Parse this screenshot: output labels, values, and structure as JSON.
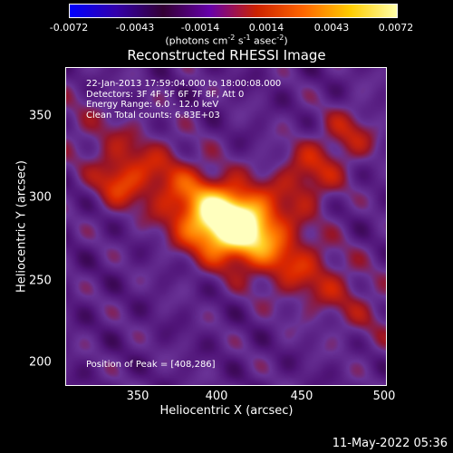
{
  "colorbar": {
    "ticks": [
      "-0.0072",
      "-0.0043",
      "-0.0014",
      "0.0014",
      "0.0043",
      "0.0072"
    ],
    "unit_parts": {
      "a": "(photons cm",
      "b": "-2",
      "c": " s",
      "d": "-1",
      "e": " asec",
      "f": "-2",
      "g": ")"
    },
    "colors": [
      "#0000ff",
      "#3300aa",
      "#330033",
      "#6600aa",
      "#cc2200",
      "#ff6600",
      "#ffcc00",
      "#ffffaa"
    ]
  },
  "title": "Reconstructed RHESSI Image",
  "annotations": {
    "time": "22-Jan-2013 17:59:04.000 to 18:00:08.000",
    "detectors": "Detectors: 3F 4F 5F 6F 7F 8F, Att 0",
    "energy": "Energy Range: 6.0 - 12.0 keV",
    "clean": "Clean    Total counts: 6.83E+03",
    "peak": "Position of Peak = [408,286]"
  },
  "timestamp": "11-May-2022 05:36",
  "chart_data": {
    "type": "heatmap",
    "title": "Reconstructed RHESSI Image",
    "xlabel": "Heliocentric X (arcsec)",
    "ylabel": "Heliocentric Y (arcsec)",
    "xlim": [
      309,
      502
    ],
    "ylim": [
      188,
      380
    ],
    "xticks": [
      350,
      400,
      450,
      500
    ],
    "yticks": [
      200,
      250,
      300,
      350
    ],
    "color_range": [
      -0.0072,
      0.0072
    ],
    "peak": [
      408,
      286
    ]
  }
}
